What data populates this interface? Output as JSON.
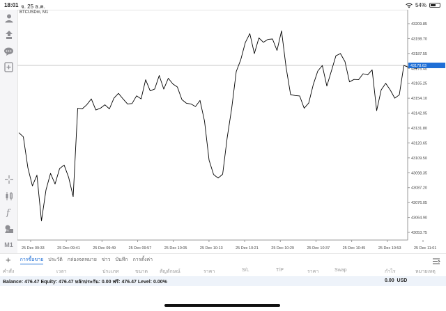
{
  "status_bar": {
    "time": "18:01",
    "date": "จ. 25 ธ.ค.",
    "battery_percent": "54%"
  },
  "chart": {
    "symbol_label": "BTCUSDm, M1",
    "accent": "#1f6fd6"
  },
  "sidebar": {
    "timeframe": "M1"
  },
  "chart_data": {
    "type": "line",
    "price_axis": [
      "43209.85",
      "43198.70",
      "43187.55",
      "43176.40",
      "43165.25",
      "43154.10",
      "43142.95",
      "43131.80",
      "43120.65",
      "43109.50",
      "43098.35",
      "43087.20",
      "43076.05",
      "43064.90",
      "43053.75"
    ],
    "time_axis": [
      "25 Dec 09:33",
      "25 Dec 09:41",
      "25 Dec 09:49",
      "25 Dec 09:57",
      "25 Dec 10:05",
      "25 Dec 10:13",
      "25 Dec 10:21",
      "25 Dec 10:29",
      "25 Dec 10:37",
      "25 Dec 10:45",
      "25 Dec 10:53",
      "25 Dec 11:01"
    ],
    "current_price": "43178.63",
    "ylim": [
      43053.75,
      43209.85
    ],
    "y": [
      43128.3,
      43125.2,
      43102.1,
      43088.5,
      43096.5,
      43062.4,
      43085.5,
      43097.9,
      43089.9,
      43101.4,
      43104.1,
      43094.9,
      43080.5,
      43146.6,
      43146.1,
      43149.2,
      43153.6,
      43145.3,
      43146.6,
      43149.2,
      43146.1,
      43154.1,
      43157.7,
      43153.6,
      43149.8,
      43150.1,
      43155.9,
      43153.6,
      43167.9,
      43159.6,
      43161.0,
      43171.1,
      43160.9,
      43169.0,
      43164.8,
      43162.5,
      43153.1,
      43150.3,
      43149.8,
      43147.9,
      43152.4,
      43136.9,
      43107.8,
      43097.0,
      43094.4,
      43097.2,
      43124.5,
      43146.6,
      43174.0,
      43182.9,
      43195.7,
      43202.4,
      43187.5,
      43199.2,
      43195.9,
      43198.1,
      43198.4,
      43189.8,
      43204.5,
      43177.3,
      43156.8,
      43156.1,
      43155.8,
      43146.6,
      43150.5,
      43164.2,
      43174.4,
      43178.6,
      43163.2,
      43174.4,
      43185.8,
      43187.5,
      43181.5,
      43166.3,
      43168.1,
      43167.9,
      43172.4,
      43171.5,
      43175.3,
      43144.8,
      43160.3,
      43165.2,
      43160.2,
      43154.1,
      43156.6,
      43178.6,
      43177.3,
      43176.7,
      43176.4
    ]
  },
  "tabs": [
    "การซื้อขาย",
    "ประวัติ",
    "กล่องจดหมาย",
    "ข่าว",
    "บันทึก",
    "การตั้งค่า"
  ],
  "columns": [
    "คำสั่ง",
    "เวลา",
    "ประเภท",
    "ขนาด",
    "สัญลักษณ์",
    "ราคา",
    "S/L",
    "T/P",
    "ราคา",
    "Swap",
    "กำไร",
    "หมายเหตุ"
  ],
  "balance": {
    "text": "Balance: 476.47 Equity: 476.47 หลักประกัน: 0.00 ฟรี: 476.47 Level: 0.00%",
    "profit": "0.00",
    "currency": "USD"
  }
}
